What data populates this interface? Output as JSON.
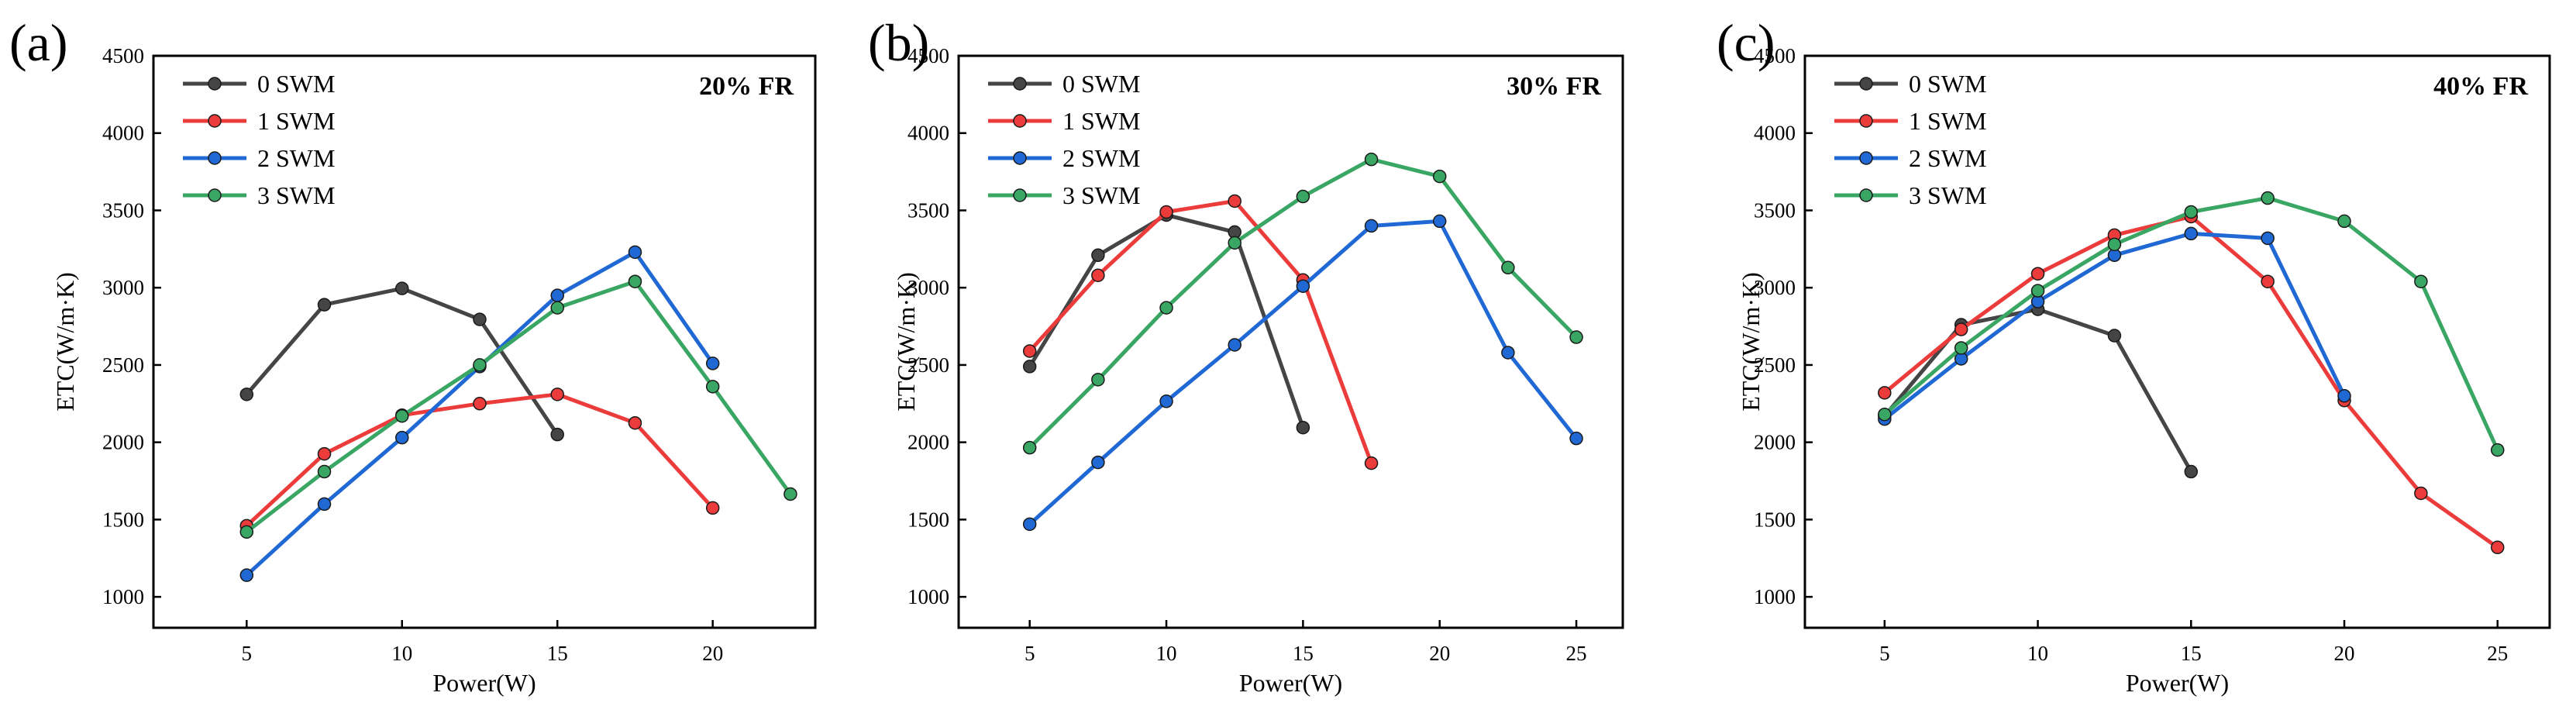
{
  "chart_data": [
    {
      "type": "line",
      "panel_label": "(a)",
      "corner_label": "20% FR",
      "xlabel": "Power(W)",
      "ylabel": "ETC(W/m·K)",
      "ylim": [
        800,
        4500
      ],
      "xlim": [
        2.0,
        23.3
      ],
      "xticks": [
        5,
        10,
        15,
        20
      ],
      "yticks": [
        1000,
        1500,
        2000,
        2500,
        3000,
        3500,
        4000,
        4500
      ],
      "legend_position": "top-left",
      "grid": false,
      "series": [
        {
          "name": "0 SWM",
          "color": "#454545",
          "x": [
            5,
            7.5,
            10,
            12.5,
            15
          ],
          "y": [
            2310,
            2890,
            2995,
            2795,
            2050
          ]
        },
        {
          "name": "1 SWM",
          "color": "#ec3b3b",
          "x": [
            5,
            7.5,
            10,
            12.5,
            15,
            17.5,
            20
          ],
          "y": [
            1460,
            1925,
            2175,
            2250,
            2310,
            2125,
            1575
          ]
        },
        {
          "name": "2 SWM",
          "color": "#2068d3",
          "x": [
            5,
            7.5,
            10,
            12.5,
            15,
            17.5,
            20
          ],
          "y": [
            1140,
            1600,
            2030,
            2490,
            2950,
            3230,
            2510
          ]
        },
        {
          "name": "3 SWM",
          "color": "#3aa663",
          "x": [
            5,
            7.5,
            10,
            12.5,
            15,
            17.5,
            20,
            22.5
          ],
          "y": [
            1420,
            1810,
            2170,
            2500,
            2870,
            3040,
            2360,
            1665
          ]
        }
      ]
    },
    {
      "type": "line",
      "panel_label": "(b)",
      "corner_label": "30% FR",
      "xlabel": "Power(W)",
      "ylabel": "ETC(W/m·K)",
      "ylim": [
        800,
        4500
      ],
      "xlim": [
        2.4,
        26.7
      ],
      "xticks": [
        5,
        10,
        15,
        20,
        25
      ],
      "yticks": [
        1000,
        1500,
        2000,
        2500,
        3000,
        3500,
        4000,
        4500
      ],
      "legend_position": "top-left",
      "grid": false,
      "series": [
        {
          "name": "0 SWM",
          "color": "#454545",
          "x": [
            5,
            7.5,
            10,
            12.5,
            15
          ],
          "y": [
            2490,
            3210,
            3470,
            3360,
            2095
          ]
        },
        {
          "name": "1 SWM",
          "color": "#ec3b3b",
          "x": [
            5,
            7.5,
            10,
            12.5,
            15,
            17.5
          ],
          "y": [
            2590,
            3080,
            3490,
            3560,
            3050,
            1865
          ]
        },
        {
          "name": "2 SWM",
          "color": "#2068d3",
          "x": [
            5,
            7.5,
            10,
            12.5,
            15,
            17.5,
            20,
            22.5,
            25
          ],
          "y": [
            1470,
            1870,
            2265,
            2630,
            3010,
            3400,
            3430,
            2580,
            2025
          ]
        },
        {
          "name": "3 SWM",
          "color": "#3aa663",
          "x": [
            5,
            7.5,
            10,
            12.5,
            15,
            17.5,
            20,
            22.5,
            25
          ],
          "y": [
            1965,
            2405,
            2870,
            3290,
            3590,
            3830,
            3720,
            3130,
            2680
          ]
        }
      ]
    },
    {
      "type": "line",
      "panel_label": "(c)",
      "corner_label": "40% FR",
      "xlabel": "Power(W)",
      "ylabel": "ETC(W/m·K)",
      "ylim": [
        800,
        4500
      ],
      "xlim": [
        2.4,
        26.7
      ],
      "xticks": [
        5,
        10,
        15,
        20,
        25
      ],
      "yticks": [
        1000,
        1500,
        2000,
        2500,
        3000,
        3500,
        4000,
        4500
      ],
      "legend_position": "top-left",
      "grid": false,
      "series": [
        {
          "name": "0 SWM",
          "color": "#454545",
          "x": [
            5,
            7.5,
            10,
            12.5,
            15
          ],
          "y": [
            2170,
            2760,
            2860,
            2690,
            1810
          ]
        },
        {
          "name": "1 SWM",
          "color": "#ec3b3b",
          "x": [
            5,
            7.5,
            10,
            12.5,
            15,
            17.5,
            20,
            22.5,
            25
          ],
          "y": [
            2320,
            2730,
            3090,
            3340,
            3460,
            3040,
            2270,
            1670,
            1320
          ]
        },
        {
          "name": "2 SWM",
          "color": "#2068d3",
          "x": [
            5,
            7.5,
            10,
            12.5,
            15,
            17.5,
            20
          ],
          "y": [
            2150,
            2540,
            2910,
            3210,
            3350,
            3320,
            2300
          ]
        },
        {
          "name": "3 SWM",
          "color": "#3aa663",
          "x": [
            5,
            7.5,
            10,
            12.5,
            15,
            17.5,
            20,
            22.5,
            25
          ],
          "y": [
            2180,
            2610,
            2980,
            3280,
            3490,
            3580,
            3430,
            3040,
            1950
          ]
        }
      ]
    }
  ]
}
